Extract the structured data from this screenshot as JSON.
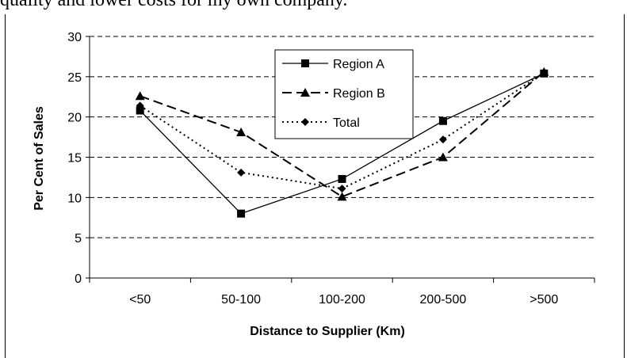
{
  "header_text": "quality and lower costs for my own company.",
  "chart_data": {
    "type": "line",
    "categories": [
      "<50",
      "50-100",
      "100-200",
      "200-500",
      ">500"
    ],
    "series": [
      {
        "name": "Region A",
        "values": [
          20.8,
          8.0,
          12.3,
          19.5,
          25.4
        ],
        "style": "solid",
        "marker": "square"
      },
      {
        "name": "Region B",
        "values": [
          22.6,
          18.1,
          10.1,
          15.0,
          25.6
        ],
        "style": "dashed",
        "marker": "triangle"
      },
      {
        "name": "Total",
        "values": [
          21.4,
          13.1,
          11.1,
          17.2,
          25.5
        ],
        "style": "dotted",
        "marker": "diamond"
      }
    ],
    "xlabel": "Distance to Supplier (Km)",
    "ylabel": "Per Cent of Sales",
    "ylim": [
      0,
      30
    ],
    "yticks": [
      0,
      5,
      10,
      15,
      20,
      25,
      30
    ],
    "grid": true,
    "legend_position": "top-center"
  }
}
